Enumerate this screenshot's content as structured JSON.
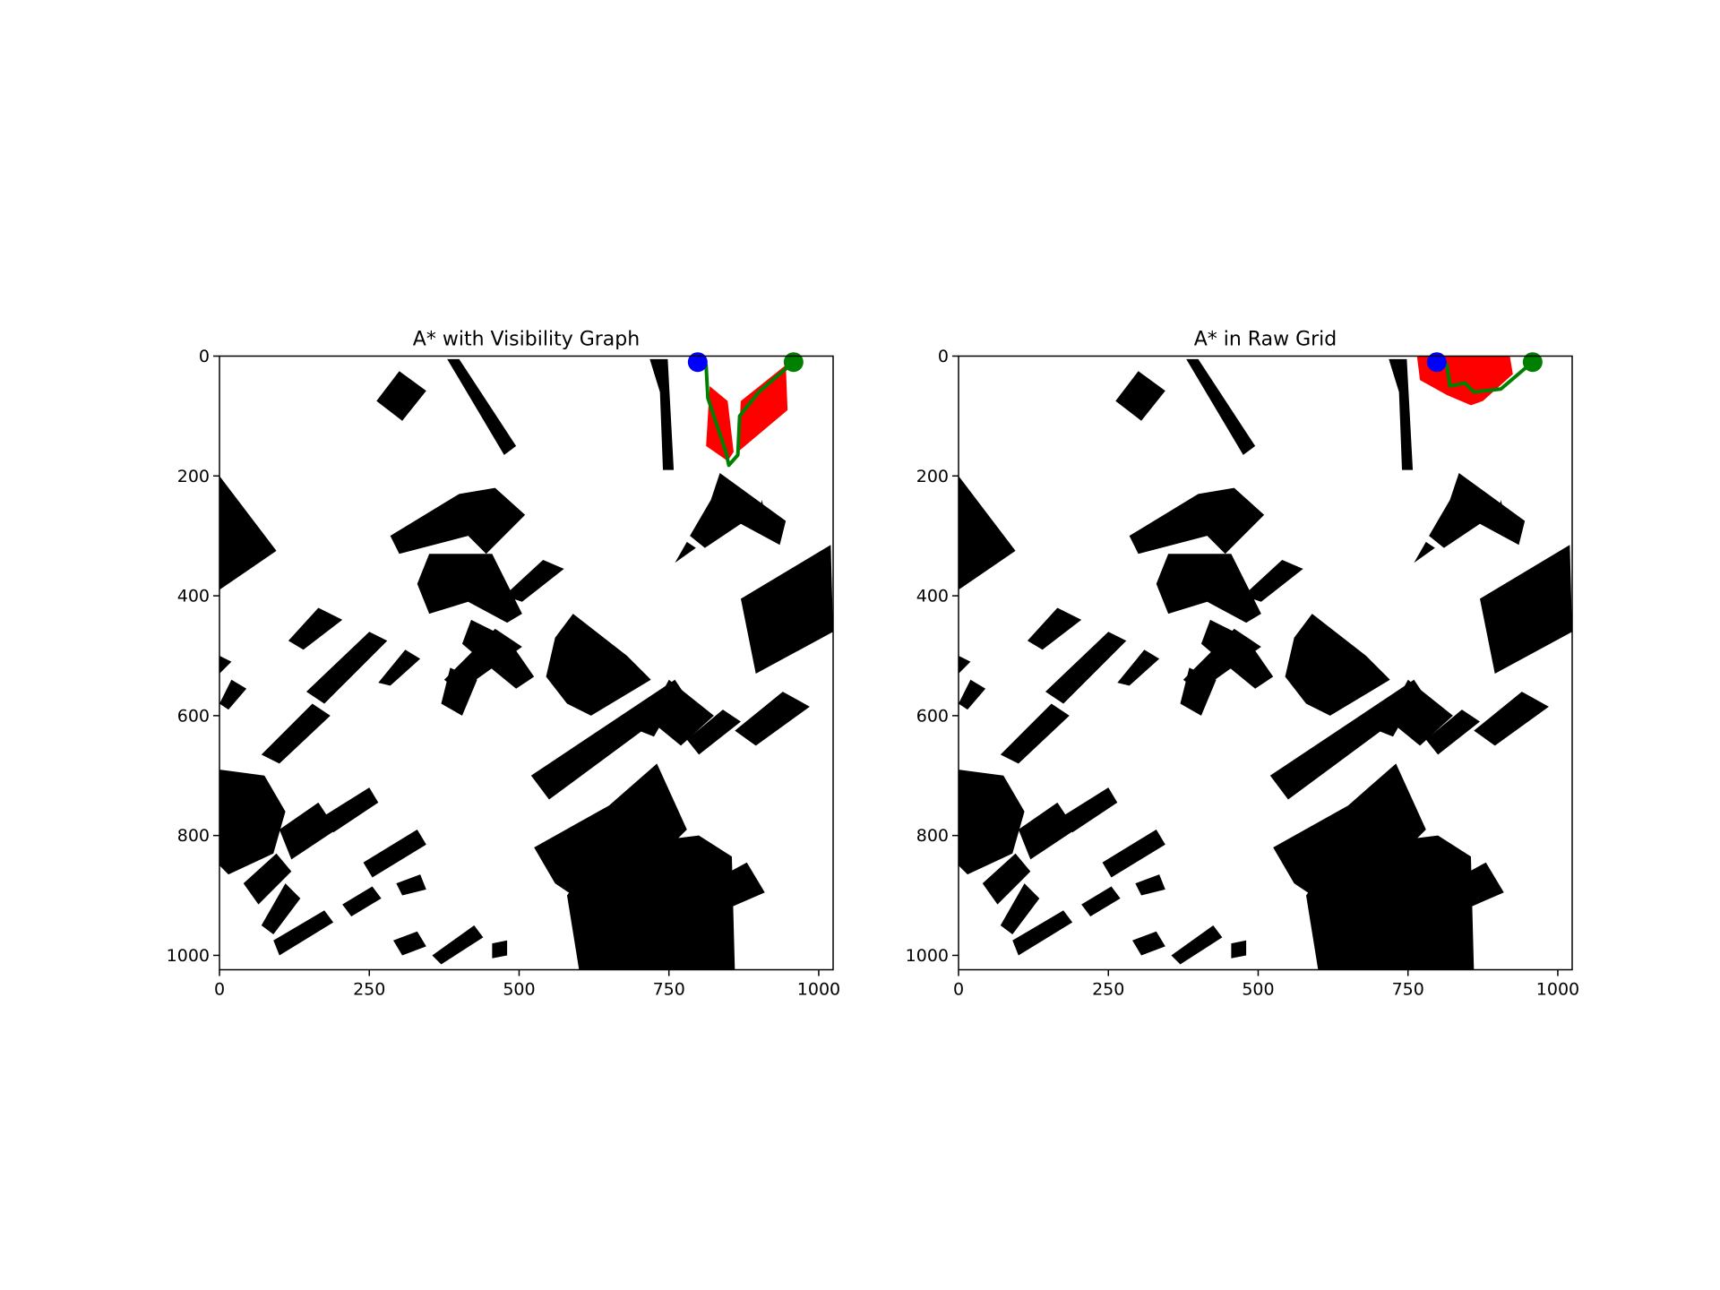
{
  "chart_data": [
    {
      "type": "heatmap",
      "title": "A* with Visibility Graph",
      "xlim": [
        0,
        1024
      ],
      "ylim": [
        1024,
        0
      ],
      "x_ticks": [
        0,
        250,
        500,
        750,
        1000
      ],
      "y_ticks": [
        0,
        200,
        400,
        600,
        800,
        1000
      ],
      "x_tick_labels": [
        "0",
        "250",
        "500",
        "750",
        "1000"
      ],
      "y_tick_labels": [
        "0",
        "200",
        "400",
        "600",
        "800",
        "1000"
      ],
      "start": {
        "x": 798,
        "y": 10,
        "color": "#0000ff"
      },
      "goal": {
        "x": 958,
        "y": 10,
        "color": "#008000"
      },
      "explored_region": [
        [
          818,
          50
        ],
        [
          848,
          75
        ],
        [
          858,
          160
        ],
        [
          848,
          175
        ],
        [
          812,
          150
        ]
      ],
      "explored_region_2": [
        [
          870,
          75
        ],
        [
          945,
          15
        ],
        [
          948,
          90
        ],
        [
          865,
          160
        ]
      ],
      "explored_color": "#ff0000",
      "path": [
        [
          798,
          10
        ],
        [
          812,
          15
        ],
        [
          815,
          70
        ],
        [
          845,
          160
        ],
        [
          850,
          182
        ],
        [
          865,
          165
        ],
        [
          868,
          100
        ],
        [
          900,
          60
        ],
        [
          958,
          10
        ]
      ],
      "path_color": "#008000"
    },
    {
      "type": "heatmap",
      "title": "A* in Raw Grid",
      "xlim": [
        0,
        1024
      ],
      "ylim": [
        1024,
        0
      ],
      "x_ticks": [
        0,
        250,
        500,
        750,
        1000
      ],
      "y_ticks": [
        0,
        200,
        400,
        600,
        800,
        1000
      ],
      "x_tick_labels": [
        "0",
        "250",
        "500",
        "750",
        "1000"
      ],
      "y_tick_labels": [
        "0",
        "200",
        "400",
        "600",
        "800",
        "1000"
      ],
      "start": {
        "x": 798,
        "y": 10,
        "color": "#0000ff"
      },
      "goal": {
        "x": 958,
        "y": 10,
        "color": "#008000"
      },
      "explored_region": [
        [
          765,
          0
        ],
        [
          920,
          0
        ],
        [
          925,
          30
        ],
        [
          875,
          75
        ],
        [
          855,
          82
        ],
        [
          815,
          65
        ],
        [
          770,
          40
        ]
      ],
      "explored_color": "#ff0000",
      "path": [
        [
          798,
          10
        ],
        [
          815,
          15
        ],
        [
          820,
          50
        ],
        [
          845,
          45
        ],
        [
          860,
          60
        ],
        [
          905,
          55
        ],
        [
          940,
          25
        ],
        [
          958,
          10
        ]
      ],
      "path_color": "#008000"
    }
  ],
  "obstacle_color": "#000000"
}
